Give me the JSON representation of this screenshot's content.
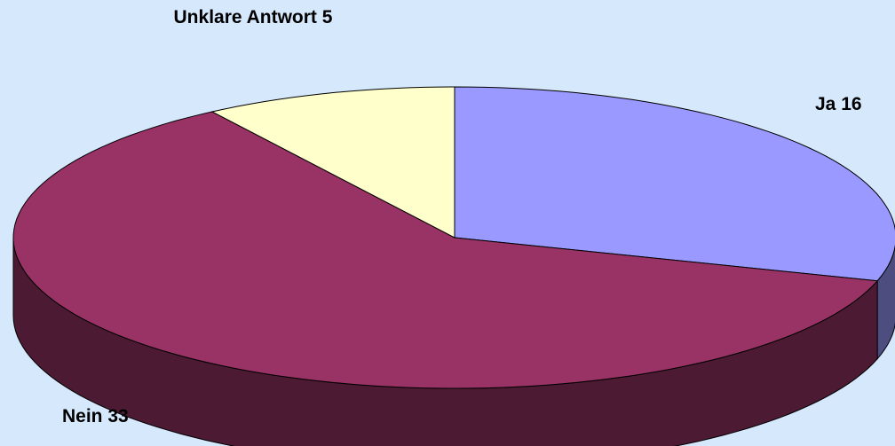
{
  "chart_data": {
    "type": "pie",
    "categories": [
      "Ja",
      "Nein",
      "Unklare Antwort"
    ],
    "values": [
      16,
      33,
      5
    ],
    "colors": [
      "#9999ff",
      "#993366",
      "#ffffcc"
    ],
    "side_colors": [
      "#4d4d80",
      "#4d1a33",
      "#808066"
    ],
    "three_d": true
  }
}
